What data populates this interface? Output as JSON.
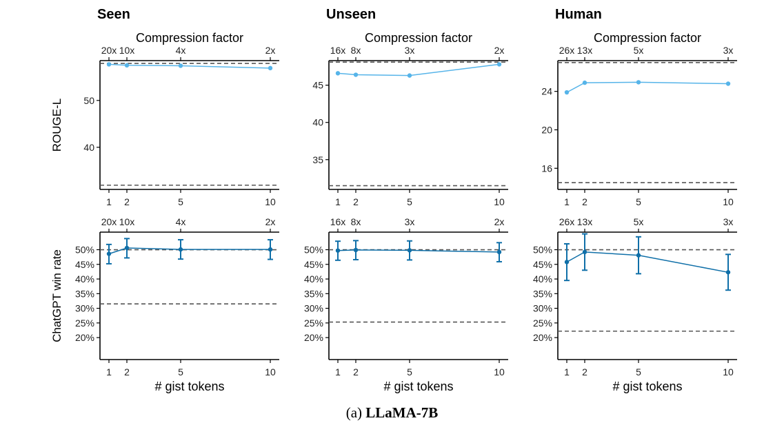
{
  "caption": {
    "prefix": "(a) ",
    "model": "LLaMA-7B"
  },
  "labels": {
    "top_axis_title": "Compression factor",
    "bottom_axis_title": "# gist tokens",
    "row_ylabels": [
      "ROUGE-L",
      "ChatGPT win rate"
    ]
  },
  "colors": {
    "rouge": "#56B4E9",
    "winrate": "#0F6FA8",
    "reference": "#555555"
  },
  "chart_data": [
    {
      "type": "line",
      "title": "Seen",
      "ylabel": "ROUGE-L",
      "x": [
        1,
        2,
        5,
        10
      ],
      "xlim": [
        0.5,
        10.5
      ],
      "top_ticks": [
        "20x",
        "10x",
        "4x",
        "2x"
      ],
      "ylim": [
        31,
        58.5
      ],
      "yticks": [
        40,
        50
      ],
      "ytick_labels": [
        "40",
        "50"
      ],
      "series": [
        {
          "values": [
            57.7,
            57.5,
            57.4,
            56.9
          ]
        }
      ],
      "reference_lines": [
        57.9,
        31.9
      ]
    },
    {
      "type": "line",
      "title": "Unseen",
      "x": [
        1,
        2,
        5,
        10
      ],
      "xlim": [
        0.5,
        10.5
      ],
      "top_ticks": [
        "16x",
        "8x",
        "3x",
        "2x"
      ],
      "ylim": [
        31,
        48.3
      ],
      "yticks": [
        35,
        40,
        45
      ],
      "ytick_labels": [
        "35",
        "40",
        "45"
      ],
      "series": [
        {
          "values": [
            46.6,
            46.4,
            46.3,
            47.8
          ]
        }
      ],
      "reference_lines": [
        48.1,
        31.5
      ]
    },
    {
      "type": "line",
      "title": "Human",
      "x": [
        1,
        2,
        5,
        10
      ],
      "xlim": [
        0.5,
        10.5
      ],
      "top_ticks": [
        "26x",
        "13x",
        "5x",
        "3x"
      ],
      "ylim": [
        13.8,
        27.2
      ],
      "yticks": [
        16,
        20,
        24
      ],
      "ytick_labels": [
        "16",
        "20",
        "24"
      ],
      "series": [
        {
          "values": [
            23.9,
            24.9,
            24.95,
            24.8
          ]
        }
      ],
      "reference_lines": [
        27.0,
        14.5
      ]
    },
    {
      "type": "line",
      "ylabel": "ChatGPT win rate",
      "xlabel": "# gist tokens",
      "x": [
        1,
        2,
        5,
        10
      ],
      "xlim": [
        0.5,
        10.5
      ],
      "top_ticks": [
        "20x",
        "10x",
        "4x",
        "2x"
      ],
      "ylim": [
        12.5,
        56
      ],
      "yticks": [
        20,
        25,
        30,
        35,
        40,
        45,
        50
      ],
      "ytick_labels": [
        "20%",
        "25%",
        "30%",
        "35%",
        "40%",
        "45%",
        "50%"
      ],
      "series": [
        {
          "values": [
            48.6,
            50.6,
            50.1,
            50.1
          ],
          "err_low": [
            45.2,
            47.2,
            46.8,
            46.7
          ],
          "err_high": [
            51.8,
            53.8,
            53.4,
            53.4
          ]
        }
      ],
      "reference_lines": [
        50.0,
        31.5
      ]
    },
    {
      "type": "line",
      "xlabel": "# gist tokens",
      "x": [
        1,
        2,
        5,
        10
      ],
      "xlim": [
        0.5,
        10.5
      ],
      "top_ticks": [
        "16x",
        "8x",
        "3x",
        "2x"
      ],
      "ylim": [
        12.5,
        56
      ],
      "yticks": [
        20,
        25,
        30,
        35,
        40,
        45,
        50
      ],
      "ytick_labels": [
        "20%",
        "25%",
        "30%",
        "35%",
        "40%",
        "45%",
        "50%"
      ],
      "series": [
        {
          "values": [
            49.7,
            49.9,
            49.8,
            49.2
          ],
          "err_low": [
            46.4,
            46.6,
            46.5,
            45.9
          ],
          "err_high": [
            52.9,
            53.1,
            53.0,
            52.4
          ]
        }
      ],
      "reference_lines": [
        50.0,
        25.3
      ]
    },
    {
      "type": "line",
      "xlabel": "# gist tokens",
      "x": [
        1,
        2,
        5,
        10
      ],
      "xlim": [
        0.5,
        10.5
      ],
      "top_ticks": [
        "26x",
        "13x",
        "5x",
        "3x"
      ],
      "ylim": [
        12.5,
        56
      ],
      "yticks": [
        20,
        25,
        30,
        35,
        40,
        45,
        50
      ],
      "ytick_labels": [
        "20%",
        "25%",
        "30%",
        "35%",
        "40%",
        "45%",
        "50%"
      ],
      "series": [
        {
          "values": [
            45.8,
            49.2,
            48.1,
            42.3
          ],
          "err_low": [
            39.5,
            43.0,
            41.8,
            36.2
          ],
          "err_high": [
            52.0,
            55.4,
            54.4,
            48.4
          ]
        }
      ],
      "reference_lines": [
        50.0,
        22.2
      ]
    }
  ]
}
